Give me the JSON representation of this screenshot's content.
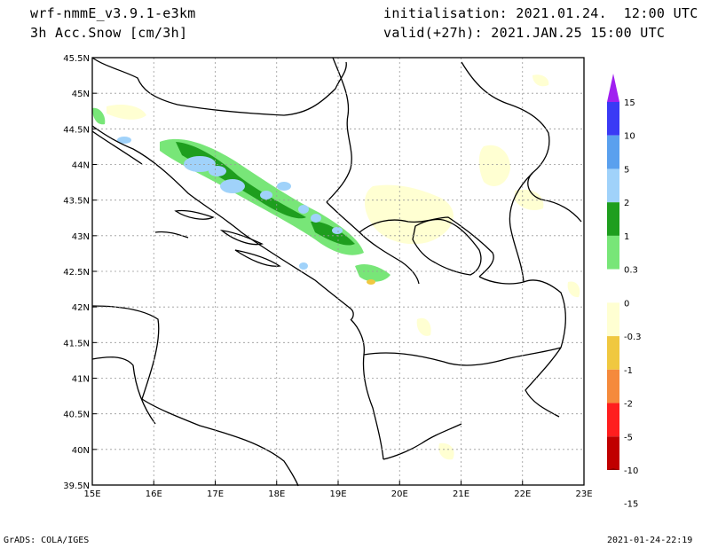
{
  "header": {
    "model": "wrf-nmmE_v3.9.1-e3km",
    "field": "3h Acc.Snow [cm/3h]",
    "init": "initialisation: 2021.01.24.  12:00 UTC",
    "valid": "valid(+27h): 2021.JAN.25 15:00 UTC"
  },
  "footer": {
    "left": "GrADS: COLA/IGES",
    "right": "2021-01-24-22:19"
  },
  "map": {
    "lon_labels": [
      "15E",
      "16E",
      "17E",
      "18E",
      "19E",
      "20E",
      "21E",
      "22E",
      "23E"
    ],
    "lat_labels": [
      "39.5N",
      "40N",
      "40.5N",
      "41N",
      "41.5N",
      "42N",
      "42.5N",
      "43N",
      "43.5N",
      "44N",
      "44.5N",
      "45N",
      "45.5N"
    ]
  },
  "legend": {
    "labels": [
      "15",
      "10",
      "5",
      "2",
      "1",
      "0.3",
      "0",
      "-0.3",
      "-1",
      "-2",
      "-5",
      "-10",
      "-15"
    ],
    "colors": [
      "#a020f0",
      "#3a3af5",
      "#5aa0ee",
      "#a0d2fa",
      "#1e9e1e",
      "#78e678",
      "#ffffff",
      "#ffffd2",
      "#f0c840",
      "#f58a3c",
      "#ff1e1e",
      "#c00000",
      "#8b0000"
    ]
  }
}
